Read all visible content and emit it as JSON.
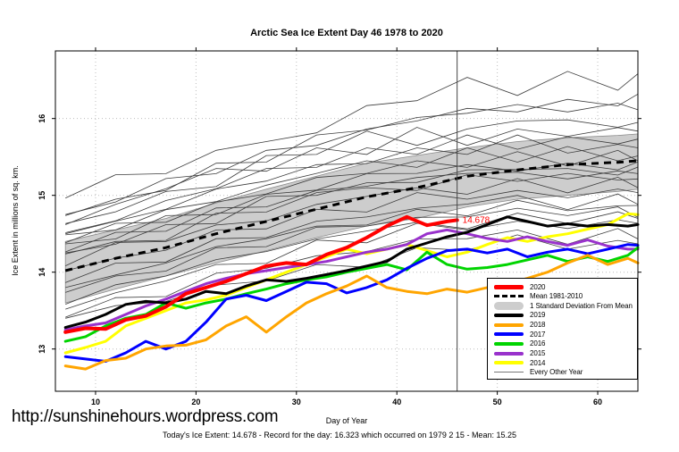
{
  "footer": {
    "url": "http://sunshinehours.wordpress.com",
    "caption": "Today's Ice Extent: 14.678  - Record for the day: 16.323 which occurred on 1979 2 15  - Mean: 15.25"
  },
  "chart_data": {
    "type": "line",
    "title": "Arctic Sea Ice Extent Day 46 1978 to 2020",
    "xlabel": "Day of Year",
    "ylabel": "Ice Extent in millions of sq. km.",
    "xlim": [
      6,
      64
    ],
    "ylim": [
      12.45,
      16.88
    ],
    "xticks": [
      10,
      20,
      30,
      40,
      50,
      60
    ],
    "yticks": [
      13,
      14,
      15,
      16
    ],
    "grid": true,
    "legend_position": "bottom-right",
    "vline_day": 46,
    "annotation": {
      "label": "14.678",
      "day": 46,
      "value": 14.678,
      "color": "#ff0000"
    },
    "band": {
      "name": "1 Standard Deviation From Mean",
      "color": "#cdcdcd",
      "edge_color": "#888888",
      "days": [
        7,
        12,
        17,
        22,
        27,
        32,
        37,
        42,
        47,
        52,
        57,
        62,
        64
      ],
      "upper": [
        14.4,
        14.55,
        14.7,
        14.9,
        15.08,
        15.25,
        15.42,
        15.52,
        15.62,
        15.7,
        15.75,
        15.78,
        15.8
      ],
      "lower": [
        13.6,
        13.78,
        13.95,
        14.12,
        14.28,
        14.45,
        14.6,
        14.7,
        14.85,
        14.95,
        15.0,
        15.05,
        15.08
      ]
    },
    "mean": {
      "name": "Mean 1981-2010",
      "color": "#000000",
      "days": [
        7,
        12,
        17,
        22,
        27,
        32,
        37,
        42,
        47,
        52,
        57,
        62,
        64
      ],
      "values": [
        14.02,
        14.18,
        14.32,
        14.5,
        14.66,
        14.82,
        14.98,
        15.1,
        15.25,
        15.33,
        15.4,
        15.43,
        15.45
      ]
    },
    "series_days": [
      7,
      9,
      11,
      13,
      15,
      17,
      19,
      21,
      23,
      25,
      27,
      29,
      31,
      33,
      35,
      37,
      39,
      41,
      43,
      45,
      47,
      49,
      51,
      53,
      55,
      57,
      59,
      61,
      63,
      64
    ],
    "series": [
      {
        "name": "2014",
        "color": "#ffff00",
        "width": 3,
        "values": [
          12.95,
          13.02,
          13.1,
          13.3,
          13.4,
          13.5,
          13.6,
          13.64,
          13.7,
          13.8,
          13.9,
          14.0,
          14.1,
          14.2,
          14.3,
          14.24,
          14.3,
          14.36,
          14.28,
          14.2,
          14.26,
          14.36,
          14.45,
          14.4,
          14.46,
          14.5,
          14.56,
          14.62,
          14.76,
          14.75
        ]
      },
      {
        "name": "2015",
        "color": "#9932cc",
        "width": 3,
        "values": [
          13.25,
          13.3,
          13.34,
          13.45,
          13.56,
          13.65,
          13.75,
          13.85,
          13.92,
          13.98,
          14.02,
          14.06,
          14.1,
          14.14,
          14.2,
          14.26,
          14.3,
          14.36,
          14.5,
          14.55,
          14.5,
          14.44,
          14.4,
          14.46,
          14.4,
          14.35,
          14.42,
          14.34,
          14.3,
          14.3
        ]
      },
      {
        "name": "2016",
        "color": "#00d400",
        "width": 3,
        "values": [
          13.1,
          13.16,
          13.3,
          13.4,
          13.45,
          13.6,
          13.53,
          13.6,
          13.65,
          13.72,
          13.78,
          13.85,
          13.9,
          13.94,
          14.0,
          14.05,
          14.1,
          14.03,
          14.26,
          14.1,
          14.04,
          14.06,
          14.1,
          14.16,
          14.22,
          14.14,
          14.2,
          14.14,
          14.22,
          14.32
        ]
      },
      {
        "name": "2017",
        "color": "#0000ff",
        "width": 3,
        "values": [
          12.9,
          12.87,
          12.84,
          12.95,
          13.1,
          13.0,
          13.1,
          13.35,
          13.65,
          13.7,
          13.63,
          13.75,
          13.87,
          13.85,
          13.73,
          13.8,
          13.9,
          14.05,
          14.18,
          14.28,
          14.3,
          14.25,
          14.3,
          14.2,
          14.26,
          14.3,
          14.24,
          14.3,
          14.36,
          14.35
        ]
      },
      {
        "name": "2018",
        "color": "#ffa500",
        "width": 3,
        "values": [
          12.78,
          12.74,
          12.85,
          12.88,
          13.0,
          13.04,
          13.05,
          13.12,
          13.3,
          13.42,
          13.22,
          13.42,
          13.6,
          13.72,
          13.82,
          13.95,
          13.8,
          13.75,
          13.72,
          13.78,
          13.74,
          13.8,
          13.85,
          13.92,
          14.0,
          14.12,
          14.22,
          14.1,
          14.18,
          14.12
        ]
      },
      {
        "name": "2019",
        "color": "#000000",
        "width": 3,
        "values": [
          13.28,
          13.35,
          13.45,
          13.58,
          13.62,
          13.6,
          13.65,
          13.75,
          13.72,
          13.82,
          13.9,
          13.88,
          13.92,
          13.97,
          14.02,
          14.08,
          14.14,
          14.3,
          14.38,
          14.46,
          14.52,
          14.62,
          14.72,
          14.66,
          14.6,
          14.63,
          14.6,
          14.62,
          14.6,
          14.62
        ]
      },
      {
        "name": "2020",
        "color": "#ff0000",
        "width": 4,
        "days": [
          7,
          9,
          11,
          13,
          15,
          17,
          19,
          21,
          23,
          25,
          27,
          29,
          31,
          33,
          35,
          37,
          39,
          41,
          43,
          45,
          46
        ],
        "values": [
          13.22,
          13.27,
          13.26,
          13.38,
          13.43,
          13.55,
          13.72,
          13.8,
          13.88,
          13.98,
          14.08,
          14.12,
          14.1,
          14.23,
          14.32,
          14.45,
          14.6,
          14.72,
          14.61,
          14.66,
          14.678
        ]
      }
    ],
    "background": {
      "name": "Every Other Year",
      "color": "#3c3c3c",
      "days": [
        7,
        12,
        17,
        22,
        27,
        32,
        37,
        42,
        47,
        52,
        57,
        62,
        64
      ],
      "lines": [
        [
          15.0,
          15.25,
          15.3,
          15.55,
          15.7,
          15.85,
          16.15,
          16.25,
          16.5,
          16.3,
          16.65,
          16.35,
          16.6
        ],
        [
          14.75,
          14.95,
          15.2,
          15.3,
          15.55,
          15.65,
          15.9,
          15.95,
          16.15,
          16.05,
          16.25,
          16.2,
          16.3
        ],
        [
          14.7,
          14.95,
          15.1,
          15.4,
          15.45,
          15.75,
          15.85,
          16.05,
          16.05,
          16.2,
          16.05,
          16.2,
          16.15
        ],
        [
          14.65,
          14.75,
          15.05,
          15.15,
          15.5,
          15.55,
          15.8,
          15.65,
          15.9,
          15.95,
          16.0,
          15.85,
          15.95
        ],
        [
          14.6,
          14.9,
          15.05,
          15.35,
          15.35,
          15.6,
          15.55,
          15.85,
          15.65,
          15.9,
          15.75,
          15.9,
          15.8
        ],
        [
          14.55,
          14.65,
          14.95,
          15.05,
          15.35,
          15.4,
          15.6,
          15.55,
          15.75,
          15.6,
          15.8,
          15.65,
          15.75
        ],
        [
          14.5,
          14.7,
          14.8,
          15.1,
          15.15,
          15.4,
          15.45,
          15.6,
          15.55,
          15.75,
          15.55,
          15.7,
          15.6
        ],
        [
          14.45,
          14.55,
          14.85,
          14.9,
          15.15,
          15.25,
          15.45,
          15.4,
          15.6,
          15.45,
          15.6,
          15.45,
          15.55
        ],
        [
          14.4,
          14.6,
          14.65,
          14.95,
          15.0,
          15.25,
          15.25,
          15.45,
          15.4,
          15.55,
          15.4,
          15.55,
          15.45
        ],
        [
          14.35,
          14.45,
          14.7,
          14.75,
          15.05,
          15.05,
          15.3,
          15.25,
          15.4,
          15.35,
          15.4,
          15.35,
          15.4
        ],
        [
          14.3,
          14.5,
          14.55,
          14.8,
          14.85,
          15.1,
          15.1,
          15.25,
          15.25,
          15.3,
          15.25,
          15.3,
          15.3
        ],
        [
          14.25,
          14.4,
          14.6,
          14.65,
          14.95,
          15.0,
          15.2,
          15.15,
          15.35,
          15.3,
          15.35,
          15.3,
          15.35
        ],
        [
          14.2,
          14.4,
          14.45,
          14.75,
          14.8,
          15.0,
          15.1,
          15.1,
          15.25,
          15.2,
          15.25,
          15.2,
          15.25
        ],
        [
          14.1,
          14.35,
          14.4,
          14.65,
          14.65,
          14.9,
          14.95,
          15.1,
          15.05,
          15.2,
          15.05,
          15.2,
          15.1
        ],
        [
          14.0,
          14.2,
          14.25,
          14.55,
          14.6,
          14.8,
          14.8,
          15.0,
          14.95,
          15.1,
          14.95,
          15.1,
          15.0
        ],
        [
          13.9,
          14.1,
          14.15,
          14.4,
          14.45,
          14.7,
          14.7,
          14.85,
          14.85,
          15.0,
          14.85,
          15.0,
          14.9
        ],
        [
          13.8,
          14.0,
          14.1,
          14.35,
          14.4,
          14.6,
          14.65,
          14.8,
          14.75,
          14.9,
          14.8,
          14.9,
          14.85
        ],
        [
          13.7,
          13.95,
          14.05,
          14.3,
          14.35,
          14.55,
          14.6,
          14.75,
          14.7,
          14.85,
          14.7,
          14.85,
          14.75
        ],
        [
          13.6,
          13.8,
          13.95,
          14.2,
          14.25,
          14.45,
          14.5,
          14.65,
          14.6,
          14.75,
          14.65,
          14.75,
          14.7
        ],
        [
          13.5,
          13.75,
          13.85,
          14.1,
          14.15,
          14.4,
          14.4,
          14.6,
          14.55,
          14.7,
          14.55,
          14.7,
          14.6
        ],
        [
          13.45,
          13.65,
          13.7,
          13.95,
          14.05,
          14.25,
          14.25,
          14.45,
          14.4,
          14.55,
          14.4,
          14.55,
          14.45
        ],
        [
          13.4,
          13.6,
          13.6,
          13.85,
          13.85,
          14.1,
          14.1,
          14.3,
          14.3,
          14.45,
          14.3,
          14.45,
          14.35
        ]
      ]
    },
    "legend": [
      {
        "label": "2020",
        "swatch": "line",
        "color": "#ff0000",
        "thickness": 5
      },
      {
        "label": "Mean 1981-2010",
        "swatch": "dash",
        "color": "#000000",
        "thickness": 3
      },
      {
        "label": "1 Standard Deviation From Mean",
        "swatch": "band",
        "color": "#cdcdcd",
        "thickness": 9
      },
      {
        "label": "2019",
        "swatch": "line",
        "color": "#000000",
        "thickness": 4
      },
      {
        "label": "2018",
        "swatch": "line",
        "color": "#ffa500",
        "thickness": 4
      },
      {
        "label": "2017",
        "swatch": "line",
        "color": "#0000ff",
        "thickness": 4
      },
      {
        "label": "2016",
        "swatch": "line",
        "color": "#00d400",
        "thickness": 4
      },
      {
        "label": "2015",
        "swatch": "line",
        "color": "#9932cc",
        "thickness": 4
      },
      {
        "label": "2014",
        "swatch": "line",
        "color": "#ffff00",
        "thickness": 4
      },
      {
        "label": "Every Other Year",
        "swatch": "thin",
        "color": "#777777",
        "thickness": 1
      }
    ]
  }
}
